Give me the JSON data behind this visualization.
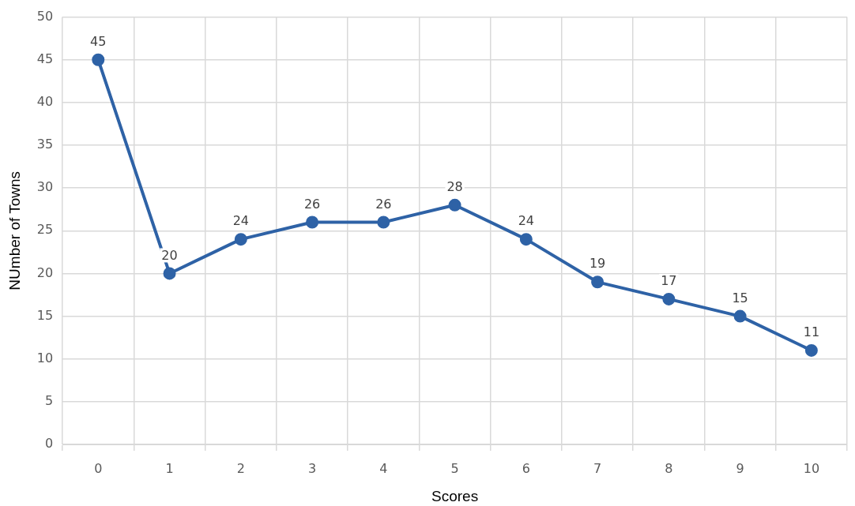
{
  "chart_data": {
    "type": "line",
    "xlabel": "Scores",
    "ylabel": "NUmber of Towns",
    "categories": [
      "0",
      "1",
      "2",
      "3",
      "4",
      "5",
      "6",
      "7",
      "8",
      "9",
      "10"
    ],
    "series": [
      {
        "color": "#2e62a6",
        "values": [
          45,
          20,
          24,
          26,
          26,
          28,
          24,
          19,
          17,
          15,
          11
        ]
      }
    ],
    "ylim": [
      0,
      50
    ],
    "yticks": [
      0,
      5,
      10,
      15,
      20,
      25,
      30,
      35,
      40,
      45,
      50
    ],
    "grid": true,
    "legend": false,
    "marker": "circle",
    "line_style": "solid",
    "data_labels": true
  }
}
